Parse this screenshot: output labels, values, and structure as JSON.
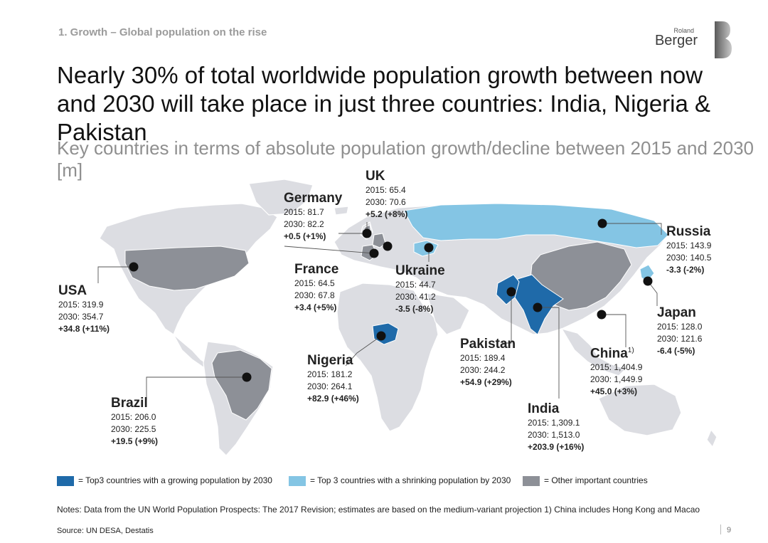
{
  "header": {
    "section": "1. Growth – Global population on the rise",
    "title": "Nearly 30% of total worldwide population growth between now and 2030 will take place in just three countries: India, Nigeria & Pakistan",
    "subtitle": "Key countries in terms of absolute population growth/decline between 2015 and 2030 [m]"
  },
  "logo": {
    "line1": "Roland",
    "line2": "Berger"
  },
  "colors": {
    "growing": "#1f6aa9",
    "shrinking": "#84c5e4",
    "other": "#8d9097",
    "land": "#dcdde2",
    "marker": "#111111"
  },
  "countries": {
    "usa": {
      "name": "USA",
      "y2015": "2015: 319.9",
      "y2030": "2030: 354.7",
      "change": "+34.8 (+11%)"
    },
    "germany": {
      "name": "Germany",
      "y2015": "2015: 81.7",
      "y2030": "2030: 82.2",
      "change": "+0.5 (+1%)"
    },
    "uk": {
      "name": "UK",
      "y2015": "2015: 65.4",
      "y2030": "2030: 70.6",
      "change": "+5.2 (+8%)"
    },
    "france": {
      "name": "France",
      "y2015": "2015: 64.5",
      "y2030": "2030: 67.8",
      "change": "+3.4 (+5%)"
    },
    "ukraine": {
      "name": "Ukraine",
      "y2015": "2015: 44.7",
      "y2030": "2030: 41.2",
      "change": "-3.5 (-8%)"
    },
    "russia": {
      "name": "Russia",
      "y2015": "2015: 143.9",
      "y2030": "2030: 140.5",
      "change": "-3.3 (-2%)"
    },
    "japan": {
      "name": "Japan",
      "y2015": "2015: 128.0",
      "y2030": "2030: 121.6",
      "change": "-6.4 (-5%)"
    },
    "china": {
      "name": "China",
      "footnote": "1)",
      "y2015": "2015: 1,404.9",
      "y2030": "2030: 1,449.9",
      "change": "+45.0 (+3%)"
    },
    "pakistan": {
      "name": "Pakistan",
      "y2015": "2015: 189.4",
      "y2030": "2030: 244.2",
      "change": "+54.9 (+29%)"
    },
    "india": {
      "name": "India",
      "y2015": "2015: 1,309.1",
      "y2030": "2030: 1,513.0",
      "change": "+203.9 (+16%)"
    },
    "nigeria": {
      "name": "Nigeria",
      "y2015": "2015: 181.2",
      "y2030": "2030: 264.1",
      "change": "+82.9 (+46%)"
    },
    "brazil": {
      "name": "Brazil",
      "y2015": "2015: 206.0",
      "y2030": "2030: 225.5",
      "change": "+19.5 (+9%)"
    }
  },
  "legend": {
    "growing": "= Top3 countries with a growing population by 2030",
    "shrinking": "= Top 3 countries with a shrinking population by 2030",
    "other": "= Other important countries"
  },
  "notes": "Notes: Data from the UN World Population Prospects: The 2017 Revision; estimates are based on the medium-variant projection  1) China includes Hong Kong and Macao",
  "source": "Source: UN DESA, Destatis",
  "page_number": "9"
}
